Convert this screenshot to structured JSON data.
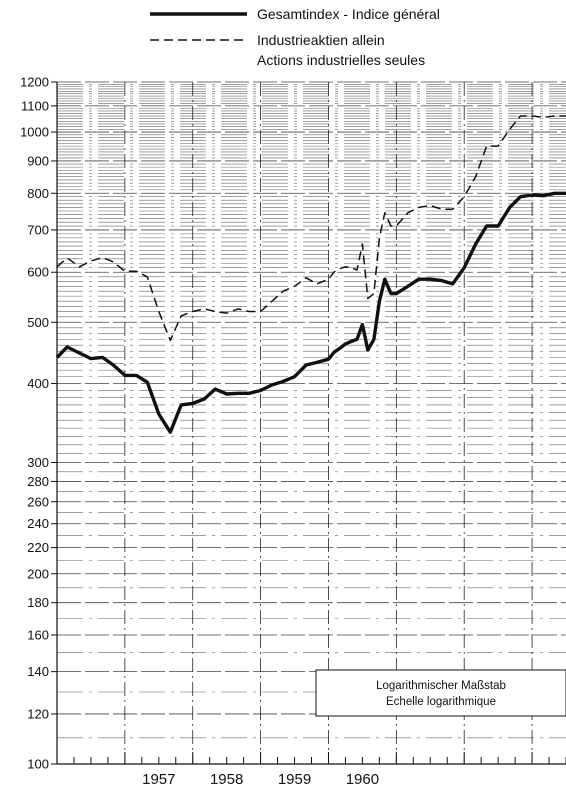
{
  "chart_data": {
    "type": "line",
    "scale": "log",
    "ylim": [
      100,
      1200
    ],
    "y_ticks": [
      100,
      120,
      140,
      160,
      180,
      200,
      220,
      240,
      260,
      280,
      300,
      400,
      500,
      600,
      700,
      800,
      900,
      1000,
      1100,
      1200
    ],
    "x_labels": [
      "1957",
      "1958",
      "1959",
      "1960"
    ],
    "quarters_per_year": 4,
    "legend": {
      "placement": "top",
      "entries": [
        {
          "style": "solid-thick",
          "lines": [
            "Gesamtindex - Indice général"
          ]
        },
        {
          "style": "dashed",
          "lines": [
            "Industrieaktien allein",
            "Actions industrielles seules"
          ]
        }
      ]
    },
    "scale_note": [
      "Logarithmischer Maßstab",
      "Echelle logarithmique"
    ],
    "series": [
      {
        "style": "solid-thick",
        "x": [
          1956.0,
          1956.15,
          1956.33,
          1956.5,
          1956.67,
          1956.83,
          1957.0,
          1957.17,
          1957.33,
          1957.5,
          1957.67,
          1957.83,
          1958.0,
          1958.17,
          1958.33,
          1958.5,
          1958.67,
          1958.83,
          1959.0,
          1959.17,
          1959.33,
          1959.5,
          1959.67,
          1959.83,
          1960.0,
          1960.08,
          1960.17,
          1960.25,
          1960.33,
          1960.42,
          1960.5,
          1960.58,
          1960.67,
          1960.75,
          1960.83,
          1960.92,
          1961.0,
          1961.17,
          1961.33,
          1961.5,
          1961.67,
          1961.83,
          1962.0,
          1962.17,
          1962.33,
          1962.5,
          1962.67,
          1962.83,
          1963.0,
          1963.17,
          1963.33,
          1963.5
        ],
        "values": [
          440,
          457,
          447,
          438,
          440,
          428,
          412,
          412,
          402,
          358,
          335,
          370,
          372,
          378,
          392,
          385,
          386,
          386,
          390,
          398,
          403,
          410,
          428,
          432,
          437,
          448,
          455,
          462,
          466,
          470,
          496,
          452,
          470,
          540,
          585,
          555,
          555,
          570,
          585,
          585,
          582,
          575,
          610,
          665,
          710,
          710,
          760,
          790,
          795,
          793,
          800,
          800
        ]
      },
      {
        "style": "dashed",
        "x": [
          1956.0,
          1956.15,
          1956.33,
          1956.5,
          1956.67,
          1956.83,
          1957.0,
          1957.17,
          1957.33,
          1957.5,
          1957.67,
          1957.83,
          1958.0,
          1958.17,
          1958.33,
          1958.5,
          1958.67,
          1958.83,
          1959.0,
          1959.17,
          1959.33,
          1959.5,
          1959.67,
          1959.83,
          1960.0,
          1960.08,
          1960.17,
          1960.25,
          1960.33,
          1960.42,
          1960.5,
          1960.58,
          1960.67,
          1960.75,
          1960.83,
          1960.92,
          1961.0,
          1961.17,
          1961.33,
          1961.5,
          1961.67,
          1961.83,
          1962.0,
          1962.17,
          1962.33,
          1962.5,
          1962.67,
          1962.83,
          1963.0,
          1963.17,
          1963.33,
          1963.5
        ],
        "values": [
          612,
          632,
          612,
          625,
          633,
          623,
          602,
          602,
          590,
          520,
          468,
          512,
          520,
          525,
          520,
          517,
          525,
          520,
          520,
          540,
          560,
          570,
          588,
          575,
          585,
          600,
          608,
          612,
          610,
          605,
          665,
          545,
          555,
          680,
          745,
          710,
          710,
          745,
          760,
          765,
          755,
          755,
          790,
          850,
          950,
          950,
          1010,
          1060,
          1060,
          1055,
          1060,
          1060
        ]
      }
    ]
  }
}
